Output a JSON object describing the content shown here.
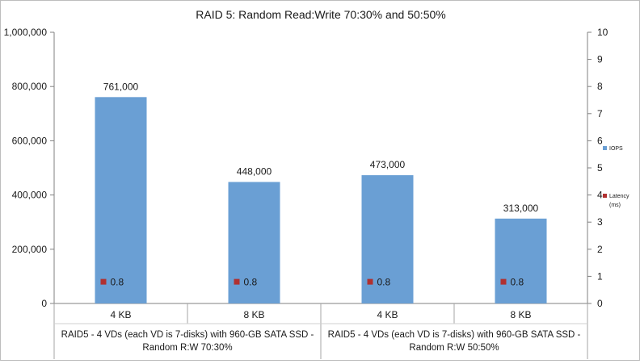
{
  "chart_data": {
    "type": "bar",
    "title": "RAID 5: Random Read:Write 70:30% and 50:50%",
    "categories": [
      "4 KB",
      "8 KB",
      "4 KB",
      "8 KB"
    ],
    "groups": [
      "RAID5 - 4 VDs (each VD is 7-disks) with 960-GB SATA SSD - Random R:W 70:30%",
      "RAID5 - 4 VDs (each VD is 7-disks) with 960-GB SATA SSD - Random R:W 50:50%"
    ],
    "group_lines": [
      [
        "RAID5 - 4 VDs (each VD is 7-disks) with 960-GB SATA SSD -",
        "Random R:W 70:30%"
      ],
      [
        "RAID5 - 4 VDs (each VD is 7-disks) with 960-GB SATA SSD -",
        "Random R:W 50:50%"
      ]
    ],
    "series": [
      {
        "name": "IOPS",
        "type": "bar",
        "axis": "left",
        "color": "#6a9fd4",
        "values": [
          761000,
          448000,
          473000,
          313000
        ],
        "labels": [
          "761,000",
          "448,000",
          "473,000",
          "313,000"
        ]
      },
      {
        "name": "Latency (ms)",
        "legend_lines": [
          "Latency",
          "(ms)"
        ],
        "type": "scatter",
        "axis": "right",
        "color": "#b03030",
        "values": [
          0.8,
          0.8,
          0.8,
          0.8
        ],
        "labels": [
          "0.8",
          "0.8",
          "0.8",
          "0.8"
        ]
      }
    ],
    "y_left": {
      "min": 0,
      "max": 1000000,
      "ticks": [
        "0",
        "200,000",
        "400,000",
        "600,000",
        "800,000",
        "1,000,000"
      ]
    },
    "y_right": {
      "min": 0,
      "max": 10,
      "ticks": [
        "0",
        "1",
        "2",
        "3",
        "4",
        "5",
        "6",
        "7",
        "8",
        "9",
        "10"
      ]
    },
    "legend_position": "right",
    "grid": false
  }
}
